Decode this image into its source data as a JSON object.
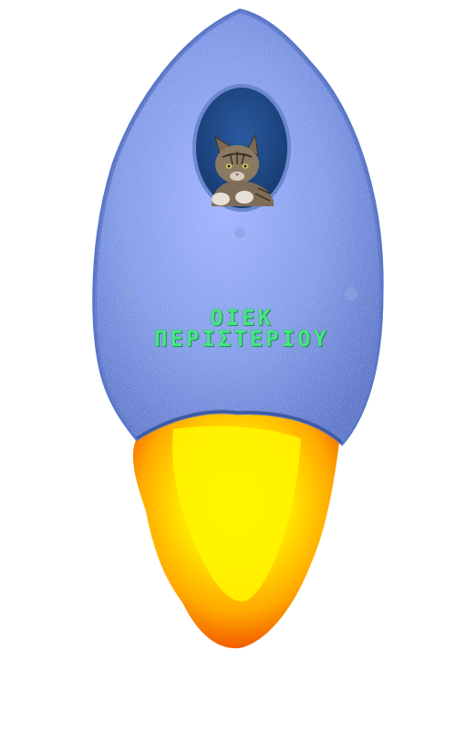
{
  "rocket": {
    "label_line1": "ΟΙΕΚ",
    "label_line2": "ΠΕΡΙΣΤΕΡΙΟΥ",
    "passenger": "cat",
    "colors": {
      "hull": "#7f9ee8",
      "hull_edge": "#4f6fb8",
      "window": "#1f4a88",
      "text": "#4be28a",
      "flame_outer": "#ff6a00",
      "flame_mid": "#ffb000",
      "flame_inner": "#fff200"
    }
  }
}
